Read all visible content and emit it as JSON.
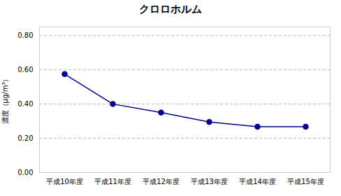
{
  "chart_data": {
    "type": "line",
    "title": "クロロホルム",
    "categories": [
      "平成10年度",
      "平成11年度",
      "平成12年度",
      "平成13年度",
      "平成14年度",
      "平成15年度"
    ],
    "values": [
      0.575,
      0.4,
      0.35,
      0.295,
      0.268,
      0.268
    ],
    "ylabel": "濃度（μg/m³）",
    "ylim": [
      0.0,
      0.85
    ],
    "yticks": [
      {
        "value": 0.0,
        "label": "0.00"
      },
      {
        "value": 0.2,
        "label": "0.20"
      },
      {
        "value": 0.4,
        "label": "0.40"
      },
      {
        "value": 0.6,
        "label": "0.60"
      },
      {
        "value": 0.8,
        "label": "0.80"
      }
    ],
    "grid": true,
    "color": "#00008B",
    "marker": "circle"
  }
}
